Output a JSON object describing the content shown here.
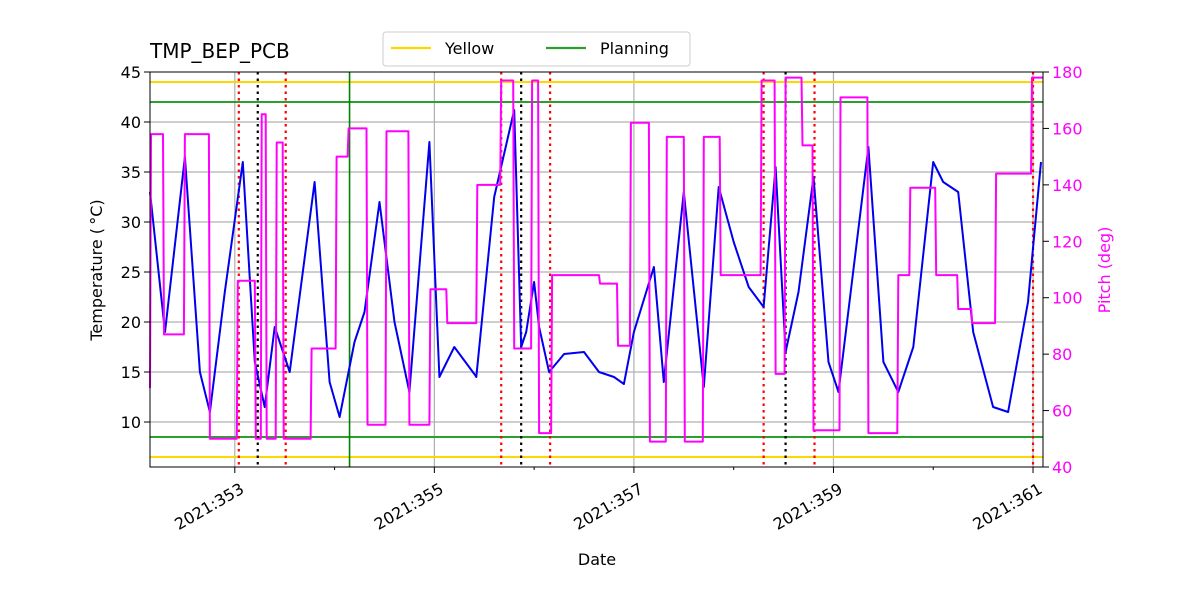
{
  "chart_data": {
    "type": "line",
    "title": "TMP_BEP_PCB",
    "xlabel": "Date",
    "ylabel": "Temperature ($^\\circ$C)",
    "ylabel_display": "Temperature ( °C)",
    "y2label": "Pitch (deg)",
    "xlim": [
      352.15,
      361.1
    ],
    "ylim": [
      5.5,
      45
    ],
    "y2lim": [
      40,
      180
    ],
    "x_ticks": [
      353,
      355,
      357,
      359,
      361
    ],
    "x_tick_labels": [
      "2021:353",
      "2021:355",
      "2021:357",
      "2021:359",
      "2021:361"
    ],
    "x_minor_ticks": [
      354,
      356,
      358,
      360
    ],
    "y_ticks": [
      10,
      15,
      20,
      25,
      30,
      35,
      40,
      45
    ],
    "y_tick_labels": [
      "10",
      "15",
      "20",
      "25",
      "30",
      "35",
      "40",
      "45"
    ],
    "y2_ticks": [
      40,
      60,
      80,
      100,
      120,
      140,
      160,
      180
    ],
    "y2_tick_labels": [
      "40",
      "60",
      "80",
      "100",
      "120",
      "140",
      "160",
      "180"
    ],
    "grid": true,
    "legend_position": "top-center",
    "legend": [
      {
        "name": "Yellow",
        "color": "#ffd700"
      },
      {
        "name": "Planning",
        "color": "#2ca02c"
      }
    ],
    "limit_lines": [
      {
        "series": "Yellow",
        "y": 44,
        "color": "#ffd700"
      },
      {
        "series": "Yellow",
        "y": 6.5,
        "color": "#ffd700"
      },
      {
        "series": "Planning",
        "y": 42,
        "color": "#2ca02c"
      },
      {
        "series": "Planning",
        "y": 8.5,
        "color": "#2ca02c"
      }
    ],
    "vertical_lines": [
      {
        "x": 354.15,
        "style": "solid",
        "color": "#008000"
      },
      {
        "x": 353.23,
        "style": "dotted",
        "color": "#000000"
      },
      {
        "x": 355.87,
        "style": "dotted",
        "color": "#000000"
      },
      {
        "x": 358.52,
        "style": "dotted",
        "color": "#000000"
      },
      {
        "x": 353.04,
        "style": "dotted",
        "color": "#ff0000"
      },
      {
        "x": 353.51,
        "style": "dotted",
        "color": "#ff0000"
      },
      {
        "x": 355.67,
        "style": "dotted",
        "color": "#ff0000"
      },
      {
        "x": 356.16,
        "style": "dotted",
        "color": "#ff0000"
      },
      {
        "x": 358.3,
        "style": "dotted",
        "color": "#ff0000"
      },
      {
        "x": 358.81,
        "style": "dotted",
        "color": "#ff0000"
      },
      {
        "x": 361.0,
        "style": "dotted",
        "color": "#ff0000"
      }
    ],
    "series": [
      {
        "axis": "left",
        "color": "#0000ee",
        "x": [
          352.15,
          352.3,
          352.5,
          352.65,
          352.75,
          352.9,
          353.08,
          353.2,
          353.3,
          353.4,
          353.55,
          353.8,
          353.95,
          354.05,
          354.2,
          354.3,
          354.45,
          354.6,
          354.75,
          354.95,
          355.05,
          355.1,
          355.2,
          355.4,
          355.42,
          355.6,
          355.8,
          355.87,
          355.92,
          356.0,
          356.05,
          356.15,
          356.3,
          356.5,
          356.65,
          356.8,
          356.9,
          357.0,
          357.2,
          357.3,
          357.5,
          357.7,
          357.85,
          358.0,
          358.15,
          358.3,
          358.42,
          358.52,
          358.65,
          358.8,
          358.95,
          359.05,
          359.35,
          359.5,
          359.65,
          359.8,
          360.0,
          360.1,
          360.25,
          360.4,
          360.6,
          360.75,
          360.95,
          361.08
        ],
        "y": [
          33,
          19,
          36.5,
          15,
          11,
          23,
          36,
          16,
          11.5,
          19.5,
          15,
          34,
          14,
          10.5,
          18,
          21,
          32,
          20,
          13,
          38,
          14.5,
          15.5,
          17.5,
          14.8,
          14.5,
          32.5,
          41.2,
          17.5,
          19,
          24,
          19.5,
          15,
          16.8,
          17,
          15,
          14.5,
          13.8,
          19,
          25.5,
          14,
          33,
          13.5,
          33.5,
          28,
          23.5,
          21.5,
          35.5,
          17,
          23,
          34.5,
          16,
          13,
          37.5,
          16,
          13,
          17.5,
          36,
          34,
          33,
          19,
          11.5,
          11,
          22,
          36
        ]
      },
      {
        "axis": "right",
        "color": "#ff00ff",
        "x": [
          352.15,
          352.16,
          352.28,
          352.29,
          352.49,
          352.5,
          352.74,
          352.75,
          353.02,
          353.03,
          353.2,
          353.21,
          353.26,
          353.27,
          353.31,
          353.32,
          353.41,
          353.42,
          353.48,
          353.49,
          353.76,
          353.77,
          354.01,
          354.02,
          354.13,
          354.14,
          354.32,
          354.33,
          354.51,
          354.52,
          354.74,
          354.75,
          354.95,
          354.96,
          355.12,
          355.13,
          355.42,
          355.43,
          355.66,
          355.67,
          355.79,
          355.8,
          355.97,
          355.98,
          356.04,
          356.05,
          356.17,
          356.18,
          356.65,
          356.66,
          356.83,
          356.84,
          356.96,
          356.97,
          357.15,
          357.16,
          357.32,
          357.33,
          357.5,
          357.51,
          357.69,
          357.7,
          357.86,
          357.87,
          358.27,
          358.28,
          358.41,
          358.42,
          358.51,
          358.52,
          358.68,
          358.69,
          358.79,
          358.8,
          359.06,
          359.07,
          359.34,
          359.35,
          359.64,
          359.65,
          359.76,
          359.77,
          360.02,
          360.03,
          360.24,
          360.25,
          360.38,
          360.39,
          360.62,
          360.63,
          360.98,
          360.99,
          361.1
        ],
        "y": [
          68,
          158,
          158,
          87,
          87,
          158,
          158,
          50,
          50,
          106,
          106,
          50,
          50,
          165,
          165,
          50,
          50,
          155,
          155,
          50,
          50,
          82,
          82,
          150,
          150,
          160,
          160,
          55,
          55,
          159,
          159,
          55,
          55,
          103,
          103,
          91,
          91,
          140,
          140,
          177,
          177,
          82,
          82,
          177,
          177,
          52,
          52,
          108,
          108,
          105,
          105,
          83,
          83,
          162,
          162,
          49,
          49,
          157,
          157,
          49,
          49,
          157,
          157,
          108,
          108,
          177,
          177,
          73,
          73,
          178,
          178,
          154,
          154,
          53,
          53,
          171,
          171,
          52,
          52,
          108,
          108,
          139,
          139,
          108,
          108,
          96,
          96,
          91,
          91,
          144,
          144,
          178,
          178
        ]
      }
    ]
  }
}
